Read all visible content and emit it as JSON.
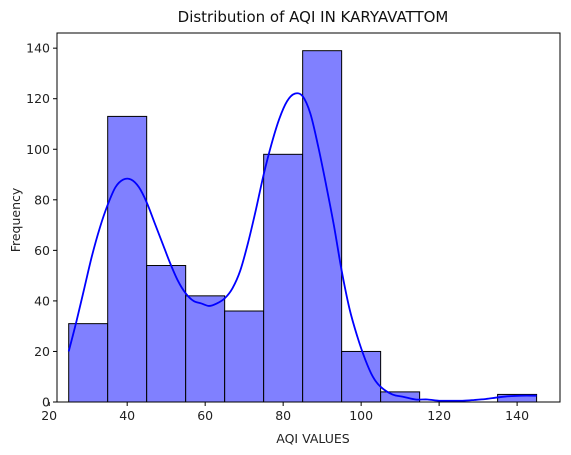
{
  "chart_data": {
    "type": "bar",
    "title": "Distribution of AQI IN KARYAVATTOM",
    "xlabel": "AQI VALUES",
    "ylabel": "Frequency",
    "xlim": [
      22,
      151
    ],
    "ylim": [
      0,
      146
    ],
    "xticks": [
      20,
      40,
      60,
      80,
      100,
      120,
      140
    ],
    "yticks": [
      0,
      20,
      40,
      60,
      80,
      100,
      120,
      140
    ],
    "bin_edges": [
      25,
      35,
      45,
      55,
      65,
      75,
      85,
      95,
      105,
      115,
      125,
      135,
      145
    ],
    "values": [
      31,
      113,
      54,
      42,
      36,
      98,
      139,
      20,
      4,
      0,
      0,
      3
    ],
    "bar_color": "#8080ff",
    "bar_edge_color": "#000000",
    "kde_color": "#0000ff",
    "kde": {
      "x": [
        25,
        27,
        29,
        31,
        33,
        35,
        37,
        39,
        41,
        43,
        45,
        47,
        49,
        51,
        53,
        55,
        57,
        59,
        61,
        63,
        65,
        67,
        69,
        71,
        73,
        75,
        77,
        79,
        81,
        83,
        85,
        87,
        89,
        91,
        93,
        95,
        97,
        99,
        101,
        103,
        105,
        108,
        111,
        114,
        117,
        120,
        123,
        126,
        129,
        132,
        135,
        138,
        141,
        145
      ],
      "y": [
        20,
        32,
        45,
        58,
        69,
        78,
        85,
        88,
        88,
        85,
        79,
        71,
        63,
        55,
        48,
        43,
        40,
        39,
        38,
        39,
        41,
        45,
        52,
        63,
        76,
        90,
        102,
        112,
        119,
        122,
        121,
        114,
        101,
        86,
        70,
        52,
        37,
        26,
        17,
        10,
        6,
        3,
        2,
        1,
        1,
        0.5,
        0.5,
        0.5,
        0.8,
        1.2,
        1.8,
        2.3,
        2.5,
        2.5
      ]
    },
    "grid": false,
    "legend": "none"
  }
}
